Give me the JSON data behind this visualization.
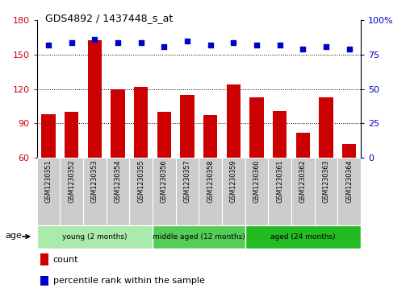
{
  "title": "GDS4892 / 1437448_s_at",
  "samples": [
    "GSM1230351",
    "GSM1230352",
    "GSM1230353",
    "GSM1230354",
    "GSM1230355",
    "GSM1230356",
    "GSM1230357",
    "GSM1230358",
    "GSM1230359",
    "GSM1230360",
    "GSM1230361",
    "GSM1230362",
    "GSM1230363",
    "GSM1230364"
  ],
  "counts": [
    98,
    100,
    163,
    120,
    122,
    100,
    115,
    97,
    124,
    113,
    101,
    82,
    113,
    72
  ],
  "percentiles": [
    82,
    84,
    86,
    84,
    84,
    81,
    85,
    82,
    84,
    82,
    82,
    79,
    81,
    79
  ],
  "bar_color": "#cc0000",
  "dot_color": "#0000cc",
  "ylim_left": [
    60,
    180
  ],
  "ylim_right": [
    0,
    100
  ],
  "yticks_left": [
    60,
    90,
    120,
    150,
    180
  ],
  "yticks_right": [
    0,
    25,
    50,
    75,
    100
  ],
  "ytick_right_labels": [
    "0",
    "25",
    "50",
    "75",
    "100%"
  ],
  "hlines": [
    90,
    120,
    150
  ],
  "groups": [
    {
      "label": "young (2 months)",
      "start": 0,
      "end": 5,
      "color": "#aaeaaa"
    },
    {
      "label": "middle aged (12 months)",
      "start": 5,
      "end": 9,
      "color": "#55cc55"
    },
    {
      "label": "aged (24 months)",
      "start": 9,
      "end": 14,
      "color": "#22bb22"
    }
  ],
  "age_label": "age",
  "legend_count_label": "count",
  "legend_percentile_label": "percentile rank within the sample",
  "tick_area_color": "#cccccc"
}
